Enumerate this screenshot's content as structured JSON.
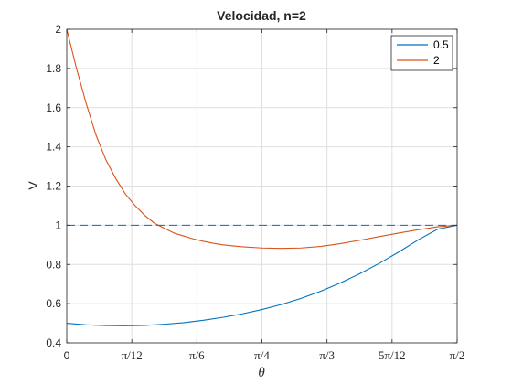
{
  "chart_data": {
    "type": "line",
    "title": "Velocidad, n=2",
    "xlabel": "θ",
    "ylabel": "V",
    "xlim": [
      0,
      1.5708
    ],
    "ylim": [
      0.4,
      2
    ],
    "grid": true,
    "legend_position": "top-right",
    "x_ticks": [
      {
        "value": 0,
        "label": "0"
      },
      {
        "value": 0.2618,
        "label": "π/12"
      },
      {
        "value": 0.5236,
        "label": "π/6"
      },
      {
        "value": 0.7854,
        "label": "π/4"
      },
      {
        "value": 1.0472,
        "label": "π/3"
      },
      {
        "value": 1.309,
        "label": "5π/12"
      },
      {
        "value": 1.5708,
        "label": "π/2"
      }
    ],
    "y_ticks": [
      {
        "value": 0.4,
        "label": "0.4"
      },
      {
        "value": 0.6,
        "label": "0.6"
      },
      {
        "value": 0.8,
        "label": "0.8"
      },
      {
        "value": 1,
        "label": "1"
      },
      {
        "value": 1.2,
        "label": "1.2"
      },
      {
        "value": 1.4,
        "label": "1.4"
      },
      {
        "value": 1.6,
        "label": "1.6"
      },
      {
        "value": 1.8,
        "label": "1.8"
      },
      {
        "value": 2,
        "label": "2"
      }
    ],
    "series": [
      {
        "name": "0.5",
        "color": "#0072BD",
        "style": "solid",
        "x": [
          0,
          0.0785,
          0.1571,
          0.2356,
          0.3142,
          0.3927,
          0.4712,
          0.5498,
          0.6283,
          0.7069,
          0.7854,
          0.8639,
          0.9425,
          1.021,
          1.0996,
          1.1781,
          1.2566,
          1.3352,
          1.4137,
          1.4923,
          1.5708
        ],
        "y": [
          0.5,
          0.492,
          0.488,
          0.487,
          0.489,
          0.495,
          0.503,
          0.515,
          0.53,
          0.548,
          0.57,
          0.596,
          0.627,
          0.663,
          0.705,
          0.752,
          0.805,
          0.863,
          0.925,
          0.98,
          1.0
        ]
      },
      {
        "name": "2",
        "color": "#D95319",
        "style": "solid",
        "x": [
          0,
          0.0393,
          0.0785,
          0.1178,
          0.1571,
          0.1963,
          0.2356,
          0.2749,
          0.3142,
          0.3534,
          0.3927,
          0.432,
          0.4712,
          0.5105,
          0.5498,
          0.5891,
          0.6283,
          0.7069,
          0.7854,
          0.8639,
          0.9425,
          1.021,
          1.0996,
          1.1781,
          1.2566,
          1.3352,
          1.4137,
          1.4923,
          1.5708
        ],
        "y": [
          2.0,
          1.8,
          1.62,
          1.46,
          1.335,
          1.24,
          1.16,
          1.1,
          1.05,
          1.01,
          0.985,
          0.96,
          0.945,
          0.93,
          0.918,
          0.908,
          0.9,
          0.89,
          0.884,
          0.882,
          0.884,
          0.892,
          0.906,
          0.923,
          0.942,
          0.96,
          0.977,
          0.992,
          1.0
        ]
      },
      {
        "name": "",
        "color": "#0072BD",
        "style": "dashed",
        "x": [
          0,
          1.5708
        ],
        "y": [
          1,
          1
        ]
      }
    ]
  }
}
